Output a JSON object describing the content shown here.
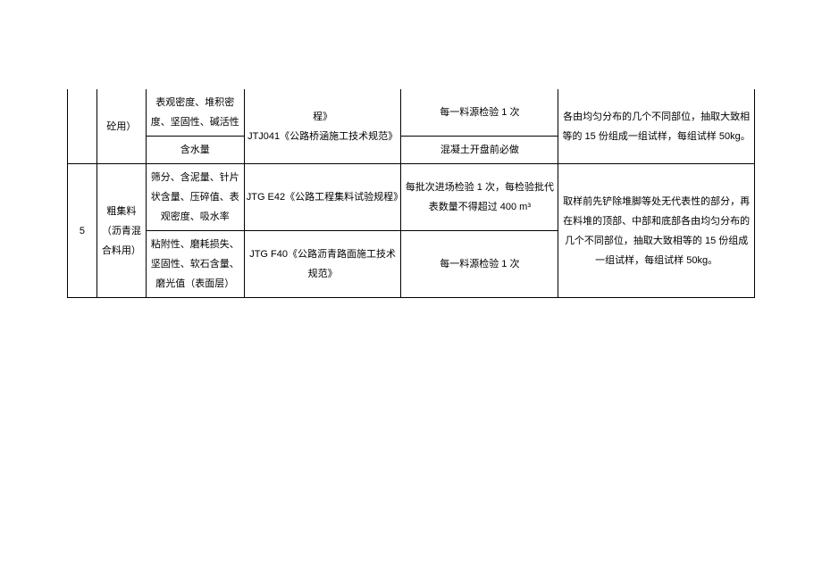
{
  "table": {
    "section1": {
      "material": "砼用）",
      "item1": "表观密度、堆积密度、坚固性、碱活性",
      "item2": "含水量",
      "std": "程》\nJTJ041《公路桥涵施工技术规范》",
      "freq1": "每一料源检验 1 次",
      "freq2": "混凝土开盘前必做",
      "method": "各由均匀分布的几个不同部位，抽取大致相等的 15 份组成一组试样，每组试样 50kg。"
    },
    "section2": {
      "num": "5",
      "material": "粗集料（沥青混合料用）",
      "item1": "筛分、含泥量、针片状含量、压碎值、表观密度、吸水率",
      "item2": "粘附性、磨耗损失、坚固性、软石含量、磨光值（表面层）",
      "std1": "JTG E42《公路工程集料试验规程》",
      "std2": "JTG F40《公路沥青路面施工技术规范》",
      "freq1": "每批次进场检验 1 次，每检验批代表数量不得超过 400 m³",
      "freq2": "每一料源检验 1 次",
      "method": "取样前先铲除堆脚等处无代表性的部分，再在料堆的顶部、中部和底部各由均匀分布的几个不同部位，抽取大致相等的 15 份组成一组试样，每组试样 50kg。"
    }
  }
}
